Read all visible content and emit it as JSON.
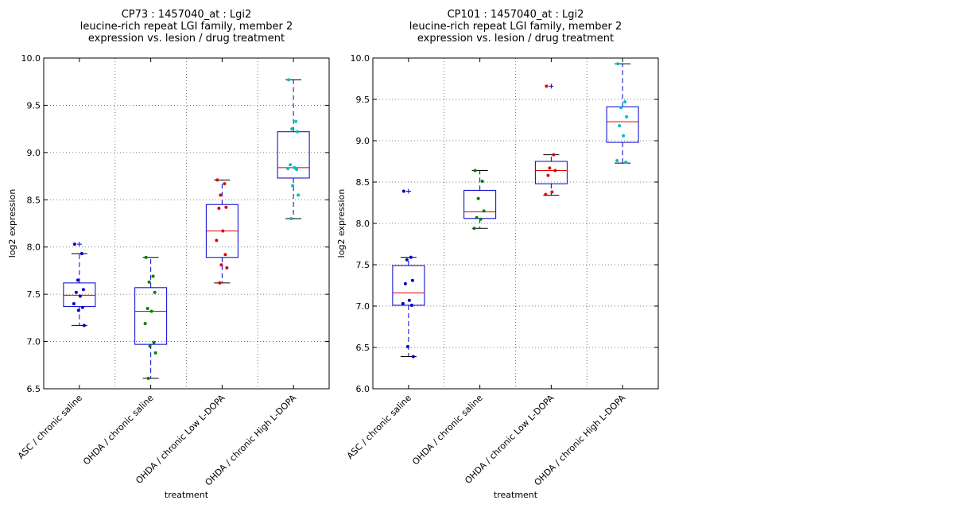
{
  "colors": {
    "box": "#0000cc",
    "median": "#e00000",
    "whisker_cap": "#000000",
    "grid": "#555555",
    "series": [
      "#0000cc",
      "#007f00",
      "#e00000",
      "#00bfbf"
    ]
  },
  "chart_data": [
    {
      "type": "box",
      "title_lines": [
        "CP73 : 1457040_at : Lgi2",
        "leucine-rich repeat LGI family, member 2",
        "expression vs. lesion / drug treatment"
      ],
      "xlabel": "treatment",
      "ylabel": "log2 expression",
      "ylim": [
        6.5,
        10.0
      ],
      "yticks": [
        "6.5",
        "7.0",
        "7.5",
        "8.0",
        "8.5",
        "9.0",
        "9.5",
        "10.0"
      ],
      "grid": true,
      "categories": [
        "ASC / chronic saline",
        "OHDA / chronic saline",
        "OHDA / chronic Low L-DOPA",
        "OHDA / chronic High L-DOPA"
      ],
      "boxes": [
        {
          "q1": 7.37,
          "median": 7.49,
          "q3": 7.62,
          "whisker_low": 7.17,
          "whisker_high": 7.93,
          "outliers": [
            8.03
          ]
        },
        {
          "q1": 6.97,
          "median": 7.32,
          "q3": 7.57,
          "whisker_low": 6.61,
          "whisker_high": 7.89,
          "outliers": []
        },
        {
          "q1": 7.89,
          "median": 8.17,
          "q3": 8.45,
          "whisker_low": 7.62,
          "whisker_high": 8.71,
          "outliers": []
        },
        {
          "q1": 8.73,
          "median": 8.84,
          "q3": 9.22,
          "whisker_low": 8.3,
          "whisker_high": 9.77,
          "outliers": []
        }
      ],
      "points": [
        [
          8.03,
          7.93,
          7.65,
          7.55,
          7.52,
          7.48,
          7.4,
          7.36,
          7.33,
          7.17
        ],
        [
          7.89,
          7.69,
          7.63,
          7.52,
          7.35,
          7.32,
          7.19,
          6.99,
          6.95,
          6.88,
          6.61
        ],
        [
          8.71,
          8.67,
          8.55,
          8.42,
          8.41,
          8.17,
          8.07,
          7.92,
          7.81,
          7.78,
          7.62
        ],
        [
          9.77,
          9.33,
          9.25,
          9.22,
          8.87,
          8.84,
          8.83,
          8.82,
          8.65,
          8.55,
          8.3
        ]
      ]
    },
    {
      "type": "box",
      "title_lines": [
        "CP101 : 1457040_at : Lgi2",
        "leucine-rich repeat LGI family, member 2",
        "expression vs. lesion / drug treatment"
      ],
      "xlabel": "treatment",
      "ylabel": "log2 expression",
      "ylim": [
        6.0,
        10.0
      ],
      "yticks": [
        "6.0",
        "6.5",
        "7.0",
        "7.5",
        "8.0",
        "8.5",
        "9.0",
        "9.5",
        "10.0"
      ],
      "grid": true,
      "categories": [
        "ASC / chronic saline",
        "OHDA / chronic saline",
        "OHDA / chronic Low L-DOPA",
        "OHDA / chronic High L-DOPA"
      ],
      "boxes": [
        {
          "q1": 7.01,
          "median": 7.16,
          "q3": 7.49,
          "whisker_low": 6.39,
          "whisker_high": 7.59,
          "outliers": [
            8.39
          ]
        },
        {
          "q1": 8.06,
          "median": 8.14,
          "q3": 8.4,
          "whisker_low": 7.94,
          "whisker_high": 8.64,
          "outliers": []
        },
        {
          "q1": 8.48,
          "median": 8.64,
          "q3": 8.75,
          "whisker_low": 8.34,
          "whisker_high": 8.83,
          "outliers": [
            9.66
          ]
        },
        {
          "q1": 8.98,
          "median": 9.23,
          "q3": 9.41,
          "whisker_low": 8.73,
          "whisker_high": 9.93,
          "outliers": []
        }
      ],
      "points": [
        [
          8.39,
          7.59,
          7.56,
          7.31,
          7.27,
          7.07,
          7.03,
          7.01,
          6.51,
          6.39
        ],
        [
          8.64,
          8.51,
          8.3,
          8.15,
          8.07,
          8.05,
          7.94
        ],
        [
          9.66,
          8.83,
          8.67,
          8.64,
          8.58,
          8.38,
          8.35
        ],
        [
          9.93,
          9.47,
          9.4,
          9.29,
          9.18,
          9.06,
          8.76,
          8.74
        ]
      ]
    }
  ]
}
